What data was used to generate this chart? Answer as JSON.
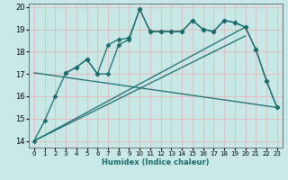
{
  "xlabel": "Humidex (Indice chaleur)",
  "bg_color": "#c8e8e8",
  "grid_color": "#e8b8b8",
  "line_color": "#1a6b6b",
  "xlim": [
    -0.5,
    23.5
  ],
  "ylim": [
    13.7,
    20.15
  ],
  "yticks": [
    14,
    15,
    16,
    17,
    18,
    19,
    20
  ],
  "xticks": [
    0,
    1,
    2,
    3,
    4,
    5,
    6,
    7,
    8,
    9,
    10,
    11,
    12,
    13,
    14,
    15,
    16,
    17,
    18,
    19,
    20,
    21,
    22,
    23
  ],
  "series": [
    {
      "x": [
        0,
        1,
        2,
        3,
        4,
        5,
        6,
        7,
        8,
        9,
        10,
        11,
        12,
        13,
        14,
        15,
        16,
        17,
        18,
        19,
        20,
        21,
        22,
        23
      ],
      "y": [
        14.0,
        14.9,
        16.0,
        17.05,
        17.3,
        17.65,
        17.0,
        17.0,
        18.3,
        18.55,
        19.9,
        18.9,
        18.9,
        18.9,
        18.9,
        19.4,
        19.0,
        18.9,
        19.4,
        19.3,
        19.1,
        18.1,
        16.7,
        15.5
      ],
      "marker": "D",
      "markersize": 2.5,
      "lw": 0.9
    },
    {
      "x": [
        3,
        4,
        5,
        6,
        7,
        8,
        9,
        10,
        11,
        12,
        13,
        14,
        15,
        16,
        17,
        18,
        19,
        20,
        21,
        22,
        23
      ],
      "y": [
        17.05,
        17.3,
        17.65,
        17.0,
        18.3,
        18.55,
        18.6,
        19.9,
        18.9,
        18.9,
        18.9,
        18.9,
        19.4,
        19.0,
        18.9,
        19.4,
        19.3,
        19.1,
        18.1,
        16.7,
        15.5
      ],
      "marker": "D",
      "markersize": 2.5,
      "lw": 0.9
    },
    {
      "x": [
        0,
        20
      ],
      "y": [
        14.0,
        19.1
      ],
      "marker": null,
      "markersize": 0,
      "lw": 0.9
    },
    {
      "x": [
        0,
        20
      ],
      "y": [
        14.0,
        18.7
      ],
      "marker": null,
      "markersize": 0,
      "lw": 0.9
    },
    {
      "x": [
        0,
        23
      ],
      "y": [
        17.05,
        15.5
      ],
      "marker": null,
      "markersize": 0,
      "lw": 0.9
    }
  ]
}
